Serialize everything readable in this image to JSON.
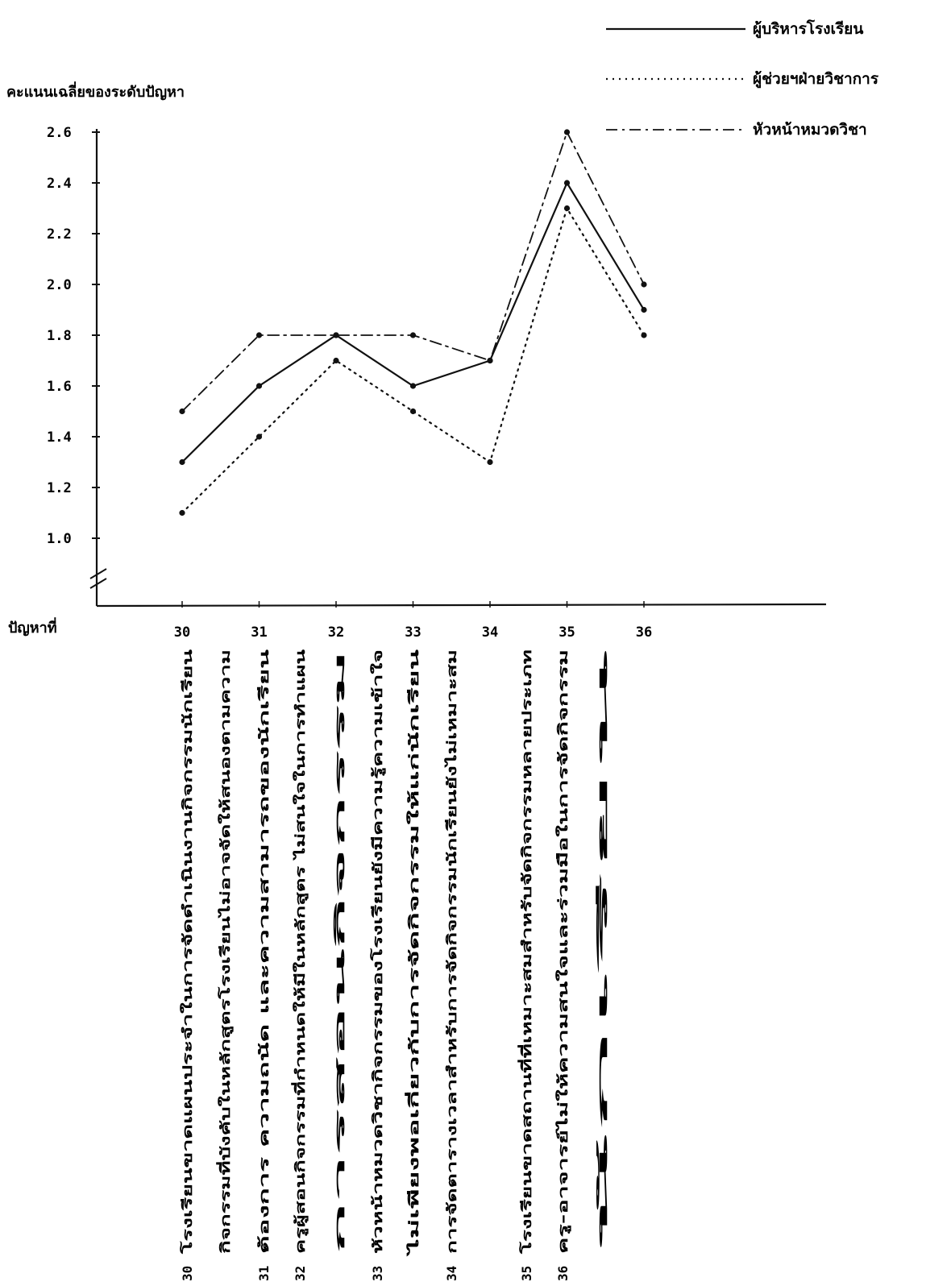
{
  "chart_data": {
    "type": "line",
    "ylabel": "คะแนนเฉลี่ยของระดับปัญหา",
    "xlabel": "ปัญหาที่",
    "categories": [
      "30",
      "31",
      "32",
      "33",
      "34",
      "35",
      "36"
    ],
    "y_ticks": [
      "1.0",
      "1.2",
      "1.4",
      "1.6",
      "1.8",
      "2.0",
      "2.2",
      "2.4",
      "2.6"
    ],
    "ylim": [
      0.9,
      2.7
    ],
    "axis_break": true,
    "grid": false,
    "legend_position": "top-right",
    "series": [
      {
        "name": "ผู้บริหารโรงเรียน",
        "style": "solid",
        "values": [
          1.3,
          1.6,
          1.8,
          1.6,
          1.7,
          2.4,
          1.9
        ]
      },
      {
        "name": "ผู้ช่วยฯฝ่ายวิชาการ",
        "style": "dotted",
        "values": [
          1.1,
          1.4,
          1.7,
          1.5,
          1.3,
          2.3,
          1.8
        ]
      },
      {
        "name": "หัวหน้าหมวดวิชา",
        "style": "dashdot",
        "values": [
          1.5,
          1.8,
          1.8,
          1.8,
          1.7,
          2.6,
          2.0
        ]
      }
    ]
  },
  "descriptions": [
    {
      "num": "30",
      "lines": [
        "โรงเรียนขาดแผนประจำในการจัดดำเนินงานกิจกรรมนักเรียน",
        "กิจกรรมที่บังคับในหลักสูตรโรงเรียนไม่อาจจัดให้สนองตามความ",
        "ต้องการ ความถนัด และความสามารถของนักเรียน"
      ]
    },
    {
      "num": "31",
      "lines": []
    },
    {
      "num": "32",
      "lines": [
        "ครูผู้สอนกิจกรรมที่กำหนดให้มีในหลักสูตร ไม่สนใจในการทำแผน",
        "การสอนกิจกรรม"
      ]
    },
    {
      "num": "33",
      "lines": [
        "หัวหน้าหมวดวิชากิจกรรมของโรงเรียนยังมีความรู้ความเข้าใจ",
        "ไม่เพียงพอเกี่ยวกับการจัดกิจกรรมให้แก่นักเรียน"
      ]
    },
    {
      "num": "34",
      "lines": [
        "การจัดตารางเวลาสำหรับการจัดกิจกรรมนักเรียนยังไม่เหมาะสม"
      ]
    },
    {
      "num": "35",
      "lines": [
        "โรงเรียนขาดสถานที่ที่เหมาะสมสำหรับจัดกิจกรรมหลายประเภท"
      ]
    },
    {
      "num": "36",
      "lines": [
        "ครู-อาจารย์ไม่ให้ความสนใจและร่วมมือในการจัดกิจกรรม",
        "นักเรียน"
      ]
    }
  ]
}
